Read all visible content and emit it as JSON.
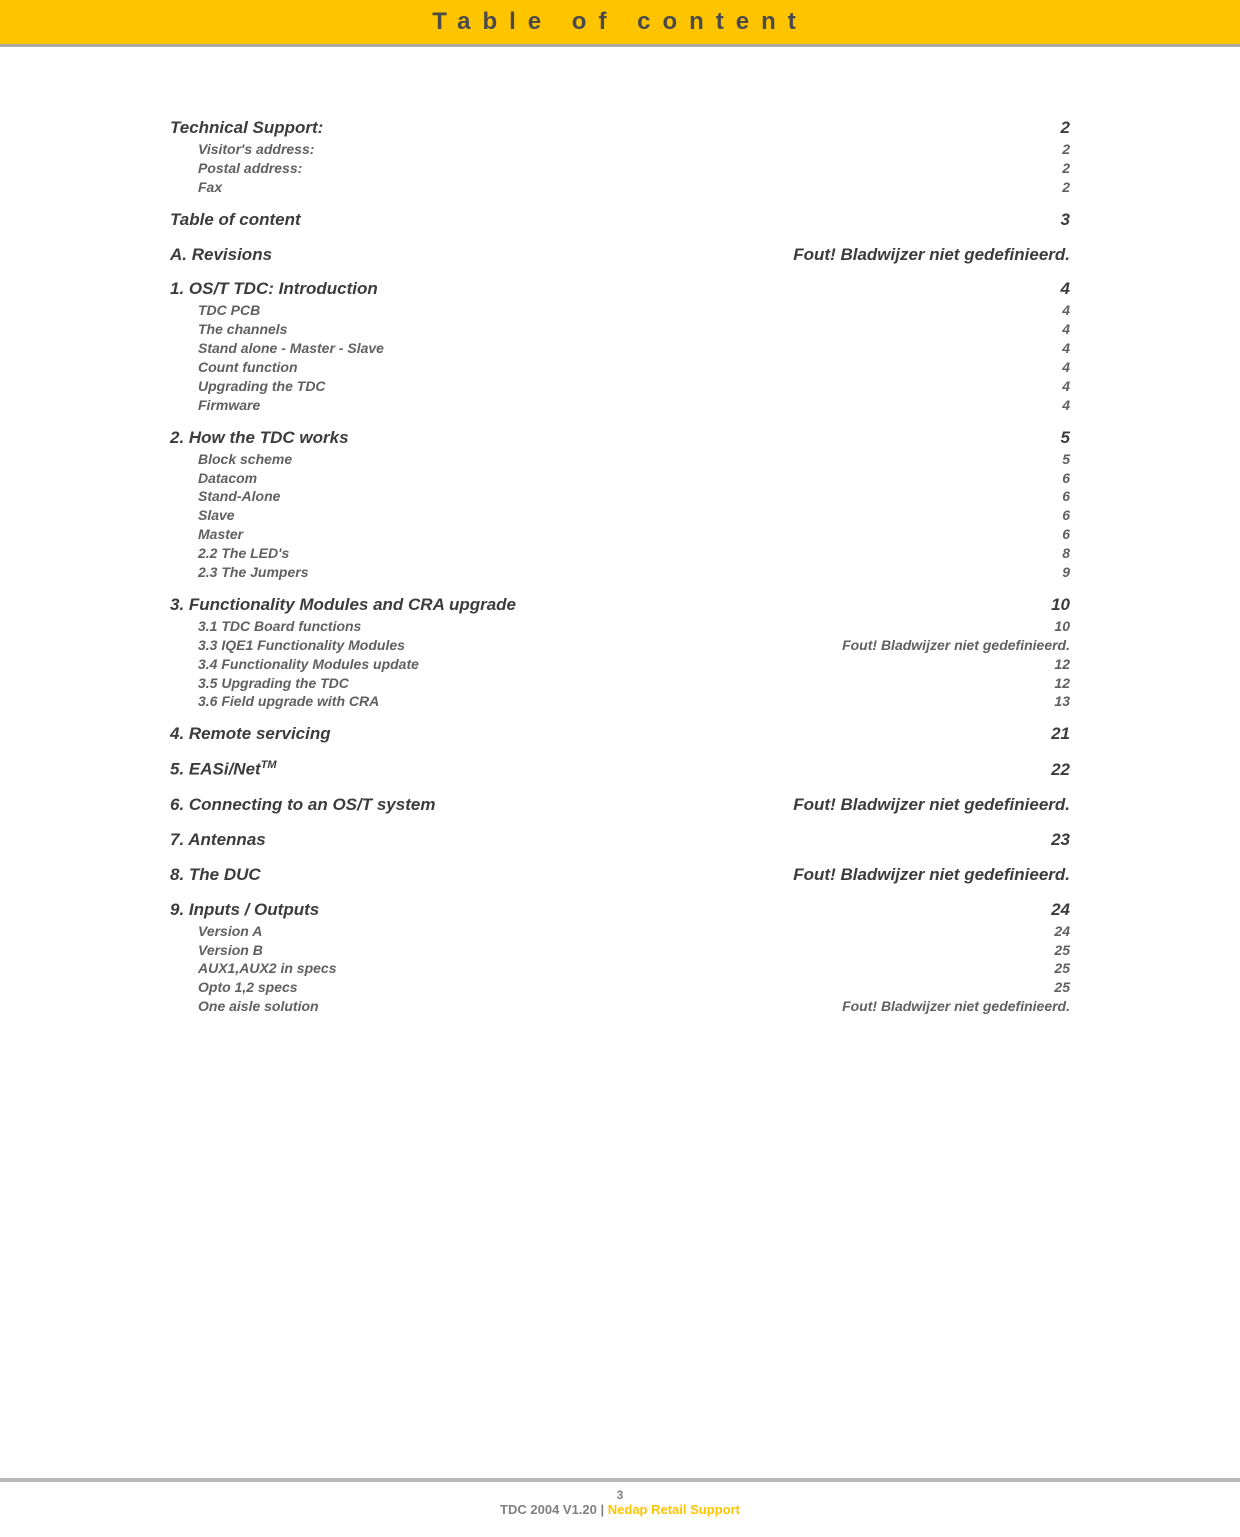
{
  "header": {
    "title": "Table of content"
  },
  "toc": [
    {
      "title": "Technical Support:",
      "page": "2",
      "level": 1,
      "children": [
        {
          "title": "Visitor's address:",
          "page": "2"
        },
        {
          "title": "Postal address:",
          "page": "2"
        },
        {
          "title": "Fax",
          "page": "2"
        }
      ]
    },
    {
      "title": "Table of content",
      "page": "3",
      "level": 1,
      "children": []
    },
    {
      "title": "A. Revisions",
      "page": "Fout! Bladwijzer niet gedefinieerd.",
      "level": 1,
      "children": []
    },
    {
      "title": "1. OS/T TDC: Introduction",
      "page": "4",
      "level": 1,
      "children": [
        {
          "title": "TDC PCB",
          "page": "4"
        },
        {
          "title": "The channels",
          "page": "4"
        },
        {
          "title": "Stand alone - Master - Slave",
          "page": "4"
        },
        {
          "title": "Count function",
          "page": "4"
        },
        {
          "title": "Upgrading the TDC",
          "page": "4"
        },
        {
          "title": "Firmware",
          "page": "4"
        }
      ]
    },
    {
      "title": "2. How the TDC works",
      "page": "5",
      "level": 1,
      "children": [
        {
          "title": "Block scheme",
          "page": "5"
        },
        {
          "title": "Datacom",
          "page": "6"
        },
        {
          "title": "Stand-Alone",
          "page": "6"
        },
        {
          "title": "Slave",
          "page": "6"
        },
        {
          "title": "Master",
          "page": "6"
        },
        {
          "title": "2.2 The LED's",
          "page": "8"
        },
        {
          "title": "2.3 The Jumpers",
          "page": "9"
        }
      ]
    },
    {
      "title": "3. Functionality Modules and CRA upgrade",
      "page": "10",
      "level": 1,
      "children": [
        {
          "title": "3.1 TDC Board functions",
          "page": "10"
        },
        {
          "title": "3.3 IQE1 Functionality Modules",
          "page": "Fout! Bladwijzer niet gedefinieerd."
        },
        {
          "title": "3.4 Functionality Modules update",
          "page": "12"
        },
        {
          "title": "3.5 Upgrading the TDC",
          "page": "12"
        },
        {
          "title": "3.6 Field upgrade with CRA",
          "page": "13"
        }
      ]
    },
    {
      "title": "4. Remote servicing",
      "page": "21",
      "level": 1,
      "children": []
    },
    {
      "title_html": "5. EASi/Net<sup class='tm'>TM</sup>",
      "title": "5. EASi/Net",
      "page": "22",
      "level": 1,
      "children": []
    },
    {
      "title": "6. Connecting to an OS/T system",
      "page": "Fout! Bladwijzer niet gedefinieerd.",
      "level": 1,
      "children": []
    },
    {
      "title": "7. Antennas",
      "page": "23",
      "level": 1,
      "children": []
    },
    {
      "title": "8. The DUC",
      "page": "Fout! Bladwijzer niet gedefinieerd.",
      "level": 1,
      "children": []
    },
    {
      "title": "9. Inputs / Outputs",
      "page": "24",
      "level": 1,
      "children": [
        {
          "title": "Version A",
          "page": "24"
        },
        {
          "title": "Version B",
          "page": "25"
        },
        {
          "title": "AUX1,AUX2 in specs",
          "page": "25"
        },
        {
          "title": "Opto 1,2 specs",
          "page": "25"
        },
        {
          "title": "One aisle solution",
          "page": "Fout! Bladwijzer niet gedefinieerd."
        }
      ]
    }
  ],
  "footer": {
    "pagenum": "3",
    "text_left": "TDC 2004 V1.20",
    "divider": " | ",
    "text_right": "Nedap Retail Support"
  },
  "colors": {
    "accent": "#ffc400",
    "text": "#505050",
    "header_text": "#4a4a4a",
    "footer_gray": "#808080",
    "rule_gray": "#b8b8b8"
  }
}
